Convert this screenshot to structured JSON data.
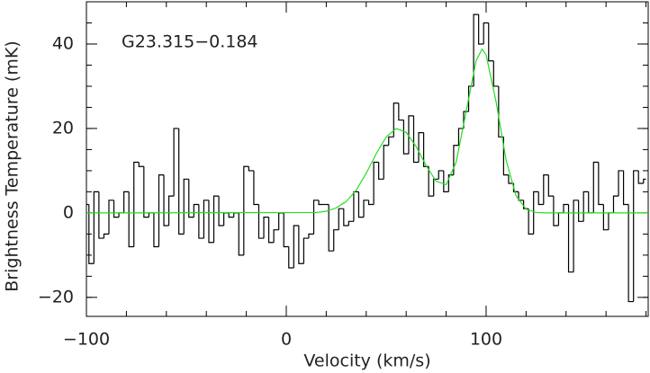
{
  "chart_data": {
    "type": "spectrum",
    "annotation": "G23.315−0.184",
    "x_label": "Velocity (km/s)",
    "y_label": "Brightness Temperature (mK)",
    "xlim": [
      -100,
      181.1
    ],
    "ylim": [
      -24.5,
      50
    ],
    "xticks": [
      {
        "value": -100,
        "label": "−100"
      },
      0,
      100
    ],
    "yticks": [
      {
        "value": -20,
        "label": "−20"
      },
      0,
      20,
      40
    ],
    "xminorticks": [
      -80,
      -60,
      -40,
      -20,
      20,
      40,
      60,
      80,
      120,
      140,
      160,
      180
    ],
    "yminorticks": [
      -20,
      -15,
      -10,
      -5,
      0,
      5,
      10,
      15,
      20,
      25,
      30,
      35,
      40,
      45
    ],
    "series": [
      {
        "type": "step",
        "color": "#000000",
        "x": [
          -100,
          -97.5,
          -95,
          -92.5,
          -90,
          -87.5,
          -85,
          -82.5,
          -80,
          -77.5,
          -75,
          -72.5,
          -70,
          -67.5,
          -65,
          -62.5,
          -60,
          -57.5,
          -55,
          -52.5,
          -50,
          -47.5,
          -45,
          -42.5,
          -40,
          -37.5,
          -35,
          -32.5,
          -30,
          -27.5,
          -25,
          -22.5,
          -20,
          -17.5,
          -15,
          -12.5,
          -10,
          -7.5,
          -5,
          -2.5,
          0,
          2.5,
          5,
          7.5,
          10,
          12.5,
          15,
          17.5,
          20,
          22.5,
          25,
          27.5,
          30,
          32.5,
          35,
          37.5,
          40,
          42.5,
          45,
          47.5,
          50,
          52.5,
          55,
          57.5,
          60,
          62.5,
          65,
          67.5,
          70,
          72.5,
          75,
          77.5,
          80,
          82.5,
          85,
          87.5,
          90,
          92.5,
          95,
          97.5,
          100,
          102.5,
          105,
          107.5,
          110,
          112.5,
          115,
          117.5,
          120,
          122.5,
          125,
          127.5,
          130,
          132.5,
          135,
          137.5,
          140,
          142.5,
          145,
          147.5,
          150,
          152.5,
          155,
          157.5,
          160,
          162.5,
          165,
          167.5,
          170,
          172.5,
          175,
          177.5,
          180
        ],
        "values": [
          2,
          -12,
          5,
          -6,
          -5,
          3,
          -1,
          0,
          5,
          -8,
          12,
          11,
          -1,
          0,
          -8,
          9,
          -3,
          4,
          20,
          -5,
          8,
          -1,
          2,
          -6,
          3,
          -7,
          4,
          -3,
          0,
          -1,
          0,
          -10,
          11,
          10,
          2,
          -6,
          -1,
          -7,
          -4,
          0,
          -8,
          -13,
          -3,
          -12,
          -6,
          -5,
          3,
          2,
          2,
          -9,
          -4,
          1,
          -3,
          -2,
          5,
          -1,
          3,
          2,
          12,
          8,
          16,
          18,
          26,
          22,
          14,
          23,
          12,
          19,
          11,
          4,
          8,
          10,
          5,
          9,
          16,
          20,
          24,
          30,
          47,
          40,
          45,
          36,
          30,
          18,
          9,
          7,
          5,
          3,
          1,
          -5,
          5,
          2,
          9,
          4,
          -3,
          0,
          2,
          -14,
          3,
          -2,
          5,
          0,
          12,
          2,
          -4,
          0,
          4,
          10,
          2,
          -21,
          10,
          7,
          8
        ]
      },
      {
        "type": "line",
        "color": "#22dd22",
        "x": [
          -100,
          15,
          20,
          25,
          30,
          35,
          40,
          45,
          50,
          55,
          60,
          65,
          70,
          75,
          80,
          85,
          90,
          95,
          98,
          100,
          105,
          110,
          115,
          120,
          125,
          130,
          181.1
        ],
        "values": [
          0,
          0.1,
          0.4,
          1.2,
          2.7,
          5.4,
          9.4,
          14,
          18,
          20,
          19.1,
          15.7,
          11.2,
          7.5,
          6.7,
          12,
          24,
          36.1,
          38.8,
          37.4,
          26.3,
          12.5,
          4,
          0.9,
          0.1,
          0,
          0
        ]
      }
    ]
  }
}
